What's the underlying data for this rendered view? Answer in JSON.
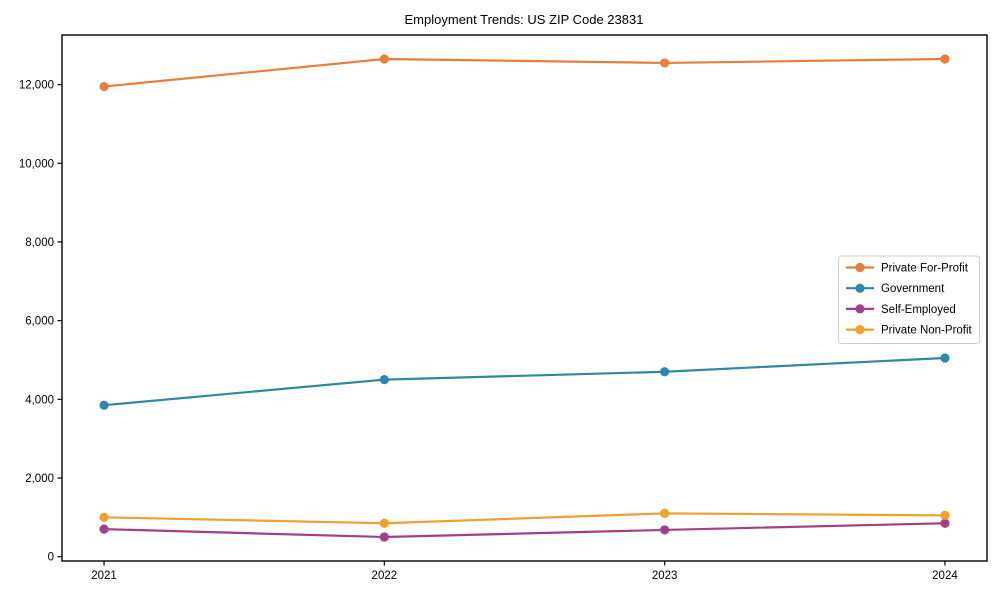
{
  "chart_data": {
    "type": "line",
    "title": "Employment Trends: US ZIP Code 23831",
    "x": [
      2021,
      2022,
      2023,
      2024
    ],
    "x_tick_labels": [
      "2021",
      "2022",
      "2023",
      "2024"
    ],
    "y_ticks": [
      0,
      2000,
      4000,
      6000,
      8000,
      10000,
      12000
    ],
    "y_tick_labels": [
      "0",
      "2,000",
      "4,000",
      "6,000",
      "8,000",
      "10,000",
      "12,000"
    ],
    "xlim": [
      2020.85,
      2024.15
    ],
    "ylim": [
      -110,
      13260
    ],
    "xlabel": "",
    "ylabel": "",
    "grid": false,
    "marker": "circle",
    "legend_position": "center right",
    "colors": {
      "spine": "#000000",
      "legend_border": "#cccccc",
      "background": "#ffffff"
    },
    "series": [
      {
        "name": "Private For-Profit",
        "color": "#e87d3c",
        "values": [
          11950,
          12650,
          12550,
          12650
        ]
      },
      {
        "name": "Government",
        "color": "#2e86ab",
        "values": [
          3850,
          4500,
          4700,
          5050
        ]
      },
      {
        "name": "Self-Employed",
        "color": "#a23f87",
        "values": [
          700,
          500,
          680,
          850
        ]
      },
      {
        "name": "Private Non-Profit",
        "color": "#f0a02f",
        "values": [
          1000,
          850,
          1100,
          1050
        ]
      }
    ]
  }
}
